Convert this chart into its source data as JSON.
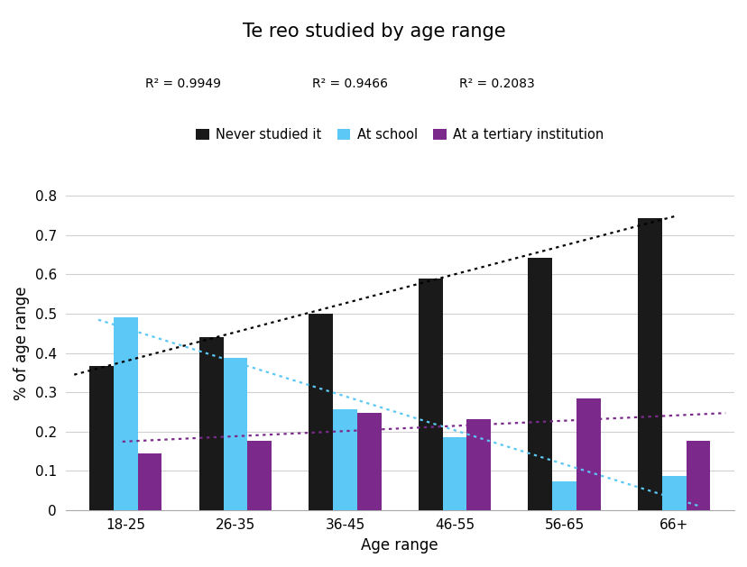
{
  "title": "Te reo studied by age range",
  "xlabel": "Age range",
  "ylabel": "% of age range",
  "categories": [
    "18-25",
    "26-35",
    "36-45",
    "46-55",
    "56-65",
    "66+"
  ],
  "never_studied": [
    0.367,
    0.44,
    0.5,
    0.59,
    0.643,
    0.743
  ],
  "at_school": [
    0.49,
    0.387,
    0.257,
    0.185,
    0.072,
    0.087
  ],
  "at_tertiary": [
    0.145,
    0.177,
    0.248,
    0.232,
    0.285,
    0.176
  ],
  "never_color": "#1a1a1a",
  "school_color": "#5bc8f5",
  "tertiary_color": "#7b2a8b",
  "r2_never": "R² = 0.9949",
  "r2_school": "R² = 0.9466",
  "r2_tertiary": "R² = 0.2083",
  "ylim": [
    0,
    0.85
  ],
  "yticks": [
    0,
    0.1,
    0.2,
    0.3,
    0.4,
    0.5,
    0.6,
    0.7,
    0.8
  ],
  "bar_width": 0.22,
  "background_color": "#ffffff",
  "grid_color": "#d0d0d0"
}
